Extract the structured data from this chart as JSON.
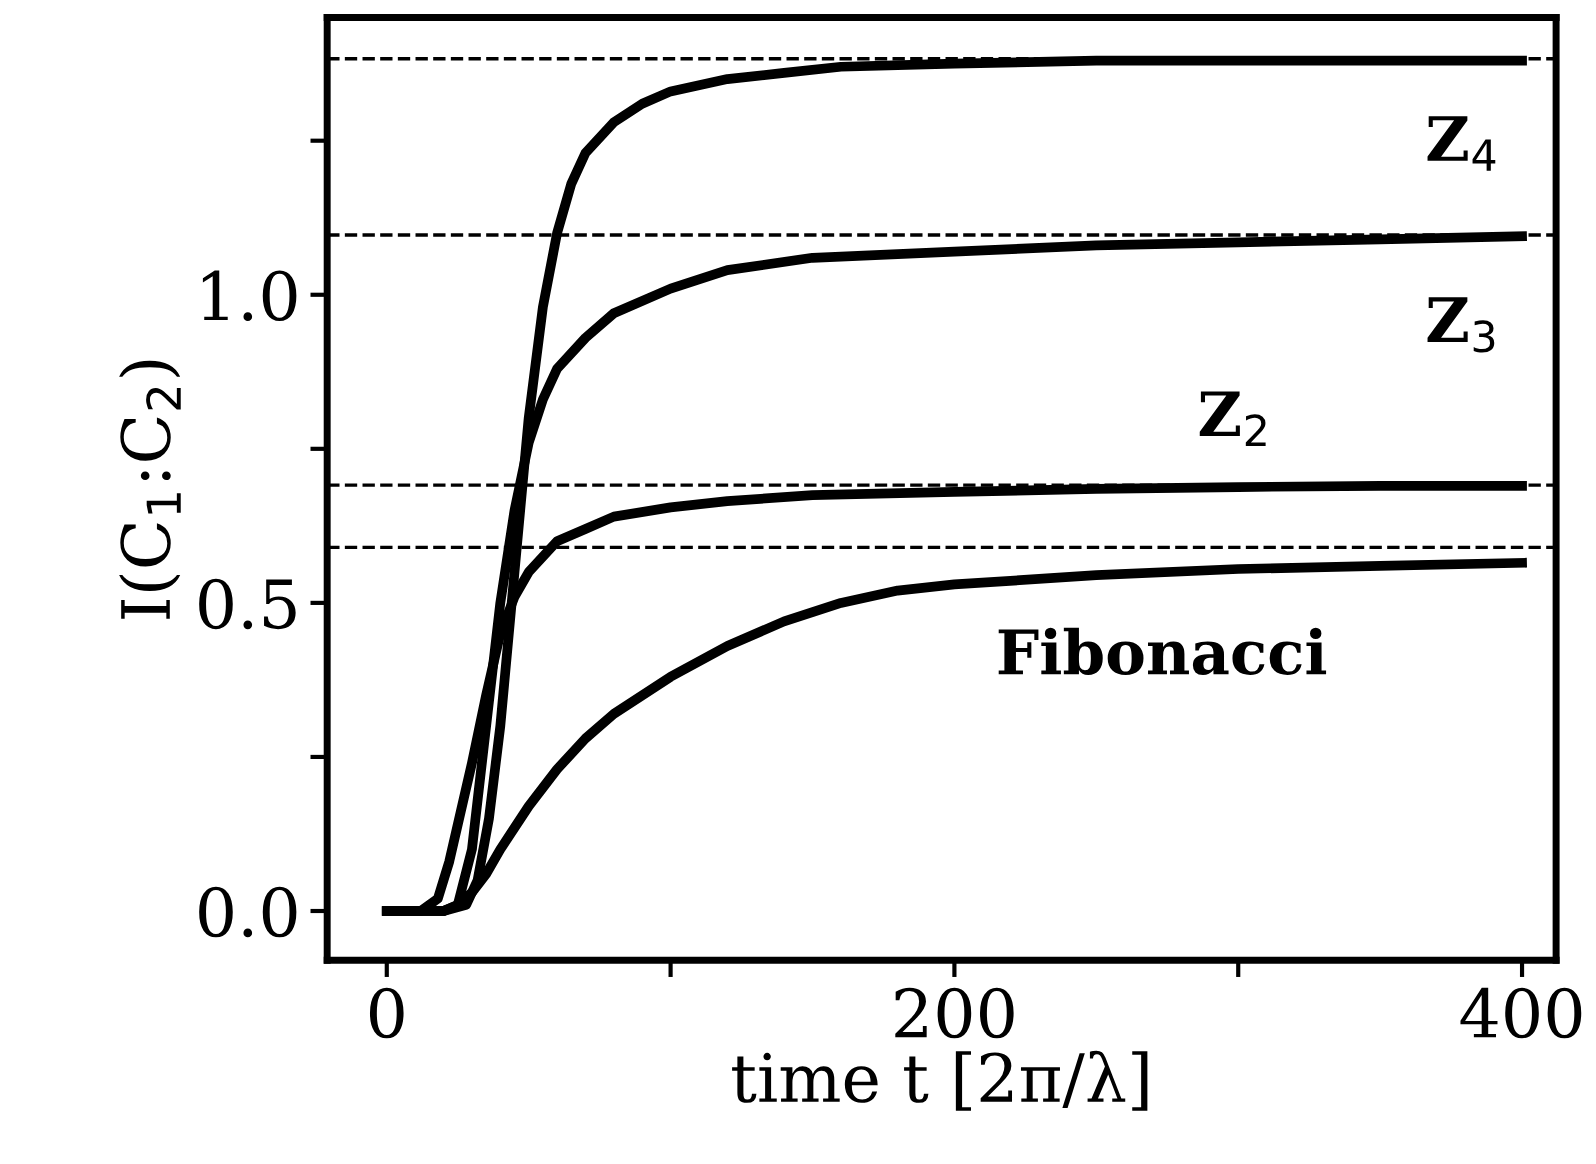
{
  "chart_data": {
    "type": "line",
    "xlabel": "time t [2π/λ]",
    "ylabel": "I(C$_{1}$:C$_{2}$)",
    "xlim": [
      -21,
      412
    ],
    "ylim": [
      -0.08,
      1.45
    ],
    "xticks": [
      0,
      {
        "value": 100,
        "label": null
      },
      200,
      {
        "value": 300,
        "label": null
      },
      400
    ],
    "yticks": [
      {
        "value": 0,
        "label": "0.0"
      },
      {
        "value": 0.25,
        "label": null
      },
      0.5,
      {
        "value": 0.75,
        "label": null
      },
      {
        "value": 1,
        "label": "1.0"
      },
      {
        "value": 1.25,
        "label": null
      }
    ],
    "grid": false,
    "legend": false,
    "line_style": "solid",
    "marker": "none",
    "series": [
      {
        "name": "Z$_{4}$",
        "color": "#000000",
        "x": [
          0,
          20,
          28,
          32,
          36,
          40,
          45,
          50,
          55,
          60,
          65,
          70,
          80,
          90,
          100,
          120,
          140,
          160,
          200,
          250,
          300,
          350,
          400
        ],
        "values": [
          0,
          0,
          0.01,
          0.05,
          0.15,
          0.3,
          0.55,
          0.8,
          0.98,
          1.1,
          1.18,
          1.23,
          1.28,
          1.31,
          1.33,
          1.35,
          1.36,
          1.37,
          1.375,
          1.38,
          1.38,
          1.38,
          1.38
        ]
      },
      {
        "name": "Z$_{3}$",
        "color": "#000000",
        "x": [
          0,
          20,
          25,
          30,
          35,
          40,
          45,
          50,
          55,
          60,
          70,
          80,
          100,
          120,
          150,
          200,
          250,
          300,
          350,
          400
        ],
        "values": [
          0,
          0,
          0.01,
          0.1,
          0.3,
          0.5,
          0.65,
          0.76,
          0.83,
          0.88,
          0.93,
          0.97,
          1.01,
          1.04,
          1.06,
          1.07,
          1.08,
          1.085,
          1.09,
          1.095
        ]
      },
      {
        "name": "Z$_{2}$",
        "color": "#000000",
        "x": [
          0,
          12,
          18,
          22,
          26,
          30,
          35,
          40,
          45,
          50,
          60,
          70,
          80,
          100,
          120,
          150,
          200,
          250,
          300,
          350,
          400
        ],
        "values": [
          0,
          0,
          0.02,
          0.08,
          0.16,
          0.24,
          0.35,
          0.45,
          0.51,
          0.55,
          0.6,
          0.62,
          0.64,
          0.655,
          0.665,
          0.675,
          0.68,
          0.685,
          0.688,
          0.69,
          0.69
        ]
      },
      {
        "name": "Fibonacci",
        "color": "#000000",
        "x": [
          0,
          20,
          25,
          30,
          35,
          40,
          50,
          60,
          70,
          80,
          90,
          100,
          120,
          140,
          160,
          180,
          200,
          250,
          300,
          350,
          400
        ],
        "values": [
          0,
          0,
          0.01,
          0.03,
          0.06,
          0.1,
          0.17,
          0.23,
          0.28,
          0.32,
          0.35,
          0.38,
          0.43,
          0.47,
          0.5,
          0.52,
          0.53,
          0.545,
          0.555,
          0.56,
          0.565
        ]
      }
    ],
    "ref_lines": [
      {
        "axis": "y",
        "value": 1.383,
        "line_style": "dashed",
        "color": "#000000"
      },
      {
        "axis": "y",
        "value": 1.097,
        "line_style": "dashed",
        "color": "#000000"
      },
      {
        "axis": "y",
        "value": 0.691,
        "line_style": "dashed",
        "color": "#000000"
      },
      {
        "axis": "y",
        "value": 0.59,
        "line_style": "dashed",
        "color": "#000000"
      }
    ]
  }
}
